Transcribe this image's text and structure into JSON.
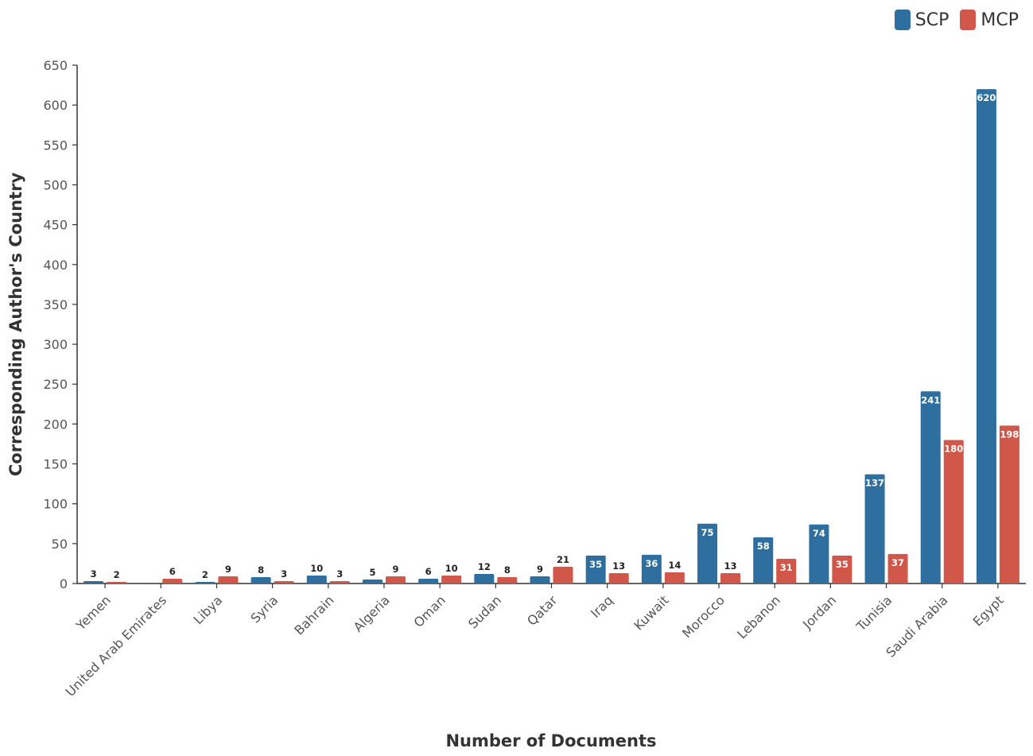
{
  "legend": {
    "scp_label": "SCP",
    "mcp_label": "MCP"
  },
  "colors": {
    "scp": "#2f6f9f",
    "mcp": "#d0574a",
    "axis": "#333333",
    "text": "#555555"
  },
  "chart_data": {
    "type": "bar",
    "title": "",
    "xlabel": "Number of Documents",
    "ylabel": "Corresponding Author's Country",
    "ylim": [
      0,
      650
    ],
    "yticks": [
      0,
      50,
      100,
      150,
      200,
      250,
      300,
      350,
      400,
      450,
      500,
      550,
      600,
      650
    ],
    "grid": false,
    "legend_position": "top-right",
    "categories": [
      "Yemen",
      "United Arab Emirates",
      "Libya",
      "Syria",
      "Bahrain",
      "Algeria",
      "Oman",
      "Sudan",
      "Qatar",
      "Iraq",
      "Kuwait",
      "Morocco",
      "Lebanon",
      "Jordan",
      "Tunisia",
      "Saudi Arabia",
      "Egypt"
    ],
    "series": [
      {
        "name": "SCP",
        "values": [
          3,
          0,
          2,
          8,
          10,
          5,
          6,
          12,
          9,
          35,
          36,
          75,
          58,
          74,
          137,
          241,
          620
        ],
        "labels": [
          "3",
          "",
          "2",
          "8",
          "10",
          "5",
          "6",
          "12",
          "9",
          "35",
          "36",
          "75",
          "58",
          "74",
          "137",
          "241",
          "620"
        ]
      },
      {
        "name": "MCP",
        "values": [
          2,
          6,
          9,
          3,
          3,
          9,
          10,
          8,
          21,
          13,
          14,
          13,
          31,
          35,
          37,
          180,
          198
        ],
        "labels": [
          "2",
          "6",
          "9",
          "3",
          "3",
          "9",
          "10",
          "8",
          "21",
          "13",
          "14",
          "13",
          "31",
          "35",
          "37",
          "180",
          "198"
        ]
      }
    ]
  }
}
